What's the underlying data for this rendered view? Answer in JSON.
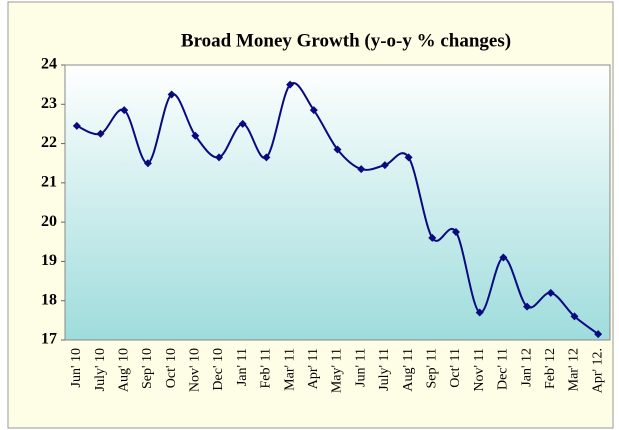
{
  "chart_data": {
    "type": "line",
    "title": "Broad Money Growth (y-o-y % changes)",
    "categories": [
      "Jun' 10",
      "July' 10",
      "Aug' 10",
      "Sep' 10",
      "Oct' 10",
      "Nov' 10",
      "Dec' 10",
      "Jan' 11",
      "Feb' 11",
      "Mar' 11",
      "Apr' 11",
      "May' 11",
      "Jun' 11",
      "July' 11",
      "Aug' 11",
      "Sep' 11",
      "Oct' 11",
      "Nov' 11",
      "Dec' 11",
      "Jan' 12",
      "Feb' 12",
      "Mar' 12",
      "Apr' 12."
    ],
    "values": [
      22.45,
      22.25,
      22.85,
      21.5,
      23.25,
      22.2,
      21.65,
      22.5,
      21.65,
      23.5,
      22.85,
      21.85,
      21.35,
      21.45,
      21.65,
      19.6,
      19.75,
      17.7,
      19.1,
      17.85,
      18.2,
      17.6,
      17.15
    ],
    "color": "#0a0a80",
    "smooth": true,
    "ylim": [
      17,
      24
    ],
    "yticks": [
      17,
      18,
      19,
      20,
      21,
      22,
      23,
      24
    ]
  }
}
